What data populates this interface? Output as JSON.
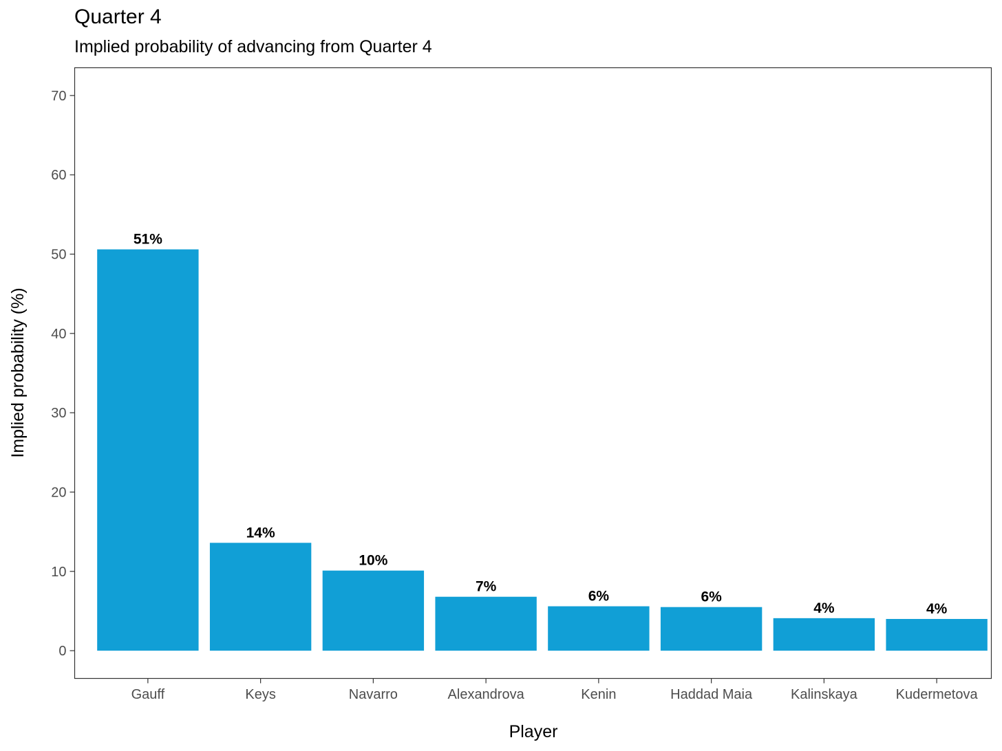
{
  "title": "Quarter 4",
  "subtitle": "Implied probability of advancing from Quarter 4",
  "colors": {
    "bar": "#119fd6",
    "panel_border": "#333333",
    "tick": "#333333"
  },
  "chart_data": {
    "type": "bar",
    "title": "Quarter 4",
    "subtitle": "Implied probability of advancing from Quarter 4",
    "xlabel": "Player",
    "ylabel": "Implied probability (%)",
    "categories": [
      "Gauff",
      "Keys",
      "Navarro",
      "Alexandrova",
      "Kenin",
      "Haddad Maia",
      "Kalinskaya",
      "Kudermetova"
    ],
    "values": [
      50.6,
      13.6,
      10.1,
      6.8,
      5.6,
      5.5,
      4.1,
      4.0
    ],
    "data_labels": [
      "51%",
      "14%",
      "10%",
      "7%",
      "6%",
      "6%",
      "4%",
      "4%"
    ],
    "yticks": [
      0,
      10,
      20,
      30,
      40,
      50,
      60,
      70
    ],
    "ylim": [
      -3.5,
      73.5
    ],
    "grid": false,
    "legend": "none"
  }
}
